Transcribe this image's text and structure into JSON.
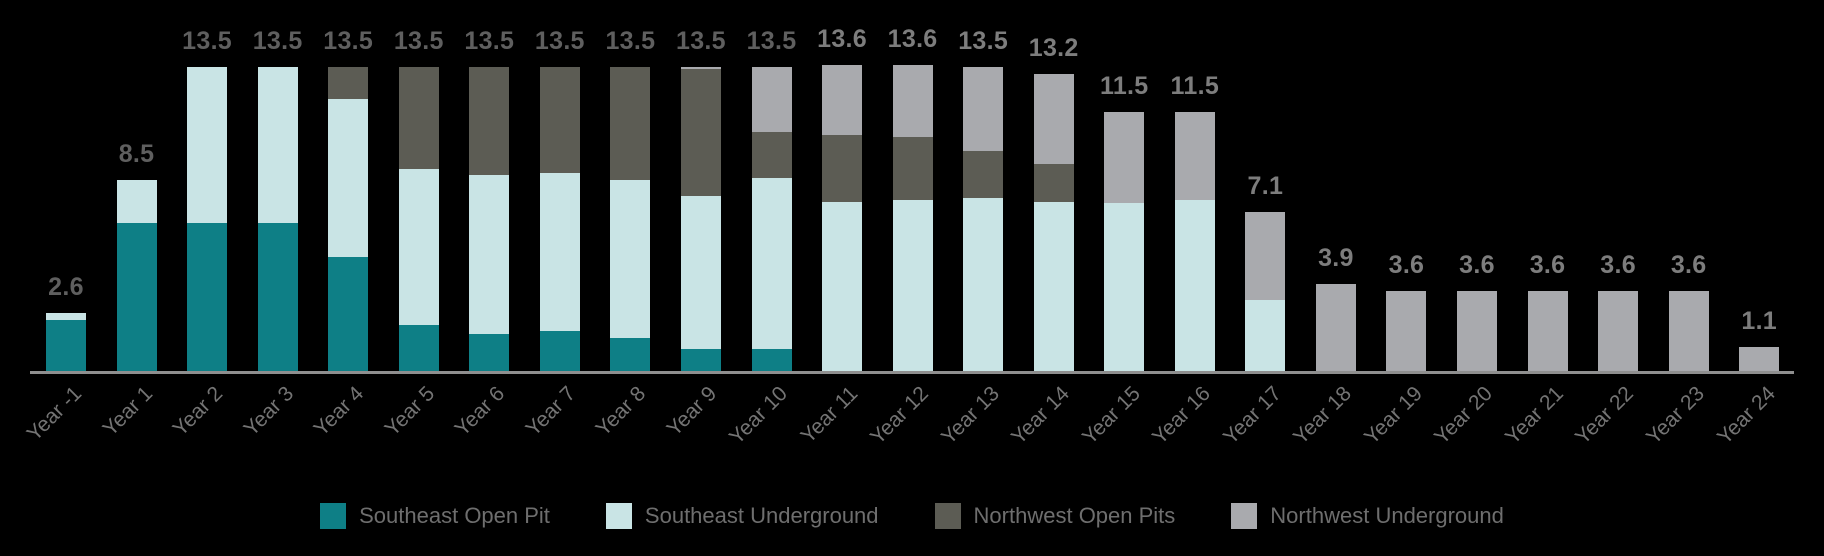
{
  "chart_data": {
    "type": "bar",
    "stacked": true,
    "title": "",
    "xlabel": "",
    "ylabel": "",
    "grid": false,
    "legend_position": "bottom",
    "ylim": [
      0,
      14
    ],
    "categories": [
      "Year -1",
      "Year 1",
      "Year 2",
      "Year 3",
      "Year 4",
      "Year 5",
      "Year 6",
      "Year 7",
      "Year 8",
      "Year 9",
      "Year 10",
      "Year 11",
      "Year 12",
      "Year 13",
      "Year 14",
      "Year 15",
      "Year 16",
      "Year 17",
      "Year 18",
      "Year 19",
      "Year 20",
      "Year 21",
      "Year 22",
      "Year 23",
      "Year 24"
    ],
    "series": [
      {
        "name": "Southeast Open Pit",
        "color": "#0e7f86",
        "values": [
          2.3,
          6.6,
          6.6,
          6.6,
          5.1,
          2.1,
          1.7,
          1.8,
          1.5,
          1.0,
          1.0,
          0,
          0,
          0,
          0,
          0,
          0,
          0,
          0,
          0,
          0,
          0,
          0,
          0,
          0
        ]
      },
      {
        "name": "Southeast Underground",
        "color": "#c9e4e5",
        "values": [
          0.3,
          1.9,
          6.9,
          6.9,
          7.0,
          6.9,
          7.0,
          7.0,
          7.0,
          6.8,
          7.6,
          7.5,
          7.6,
          7.7,
          7.5,
          7.5,
          7.6,
          3.2,
          0,
          0,
          0,
          0,
          0,
          0,
          0
        ]
      },
      {
        "name": "Northwest Open Pits",
        "color": "#5c5c54",
        "values": [
          0,
          0,
          0,
          0,
          1.4,
          4.5,
          4.8,
          4.7,
          5.0,
          5.6,
          2.0,
          3.0,
          2.8,
          2.1,
          1.7,
          0,
          0,
          0,
          0,
          0,
          0,
          0,
          0,
          0,
          0
        ]
      },
      {
        "name": "Northwest Underground",
        "color": "#a9aaae",
        "values": [
          0,
          0,
          0,
          0,
          0,
          0,
          0,
          0,
          0,
          0.1,
          2.9,
          3.1,
          3.2,
          3.7,
          4.0,
          4.0,
          3.9,
          3.9,
          3.9,
          3.6,
          3.6,
          3.6,
          3.6,
          3.6,
          1.1
        ]
      }
    ],
    "totals": [
      "2.6",
      "8.5",
      "13.5",
      "13.5",
      "13.5",
      "13.5",
      "13.5",
      "13.5",
      "13.5",
      "13.5",
      "13.5",
      "13.6",
      "13.6",
      "13.5",
      "13.2",
      "11.5",
      "11.5",
      "7.1",
      "3.9",
      "3.6",
      "3.6",
      "3.6",
      "3.6",
      "3.6",
      "1.1"
    ],
    "colors": {
      "background": "#000000",
      "axis_line": "#8f8f8f",
      "tick_label": "#747474",
      "legend_text": "#6e6e6e",
      "total_label_dark": "#5f5f5f",
      "total_label_light": "#7d7d7d"
    }
  }
}
